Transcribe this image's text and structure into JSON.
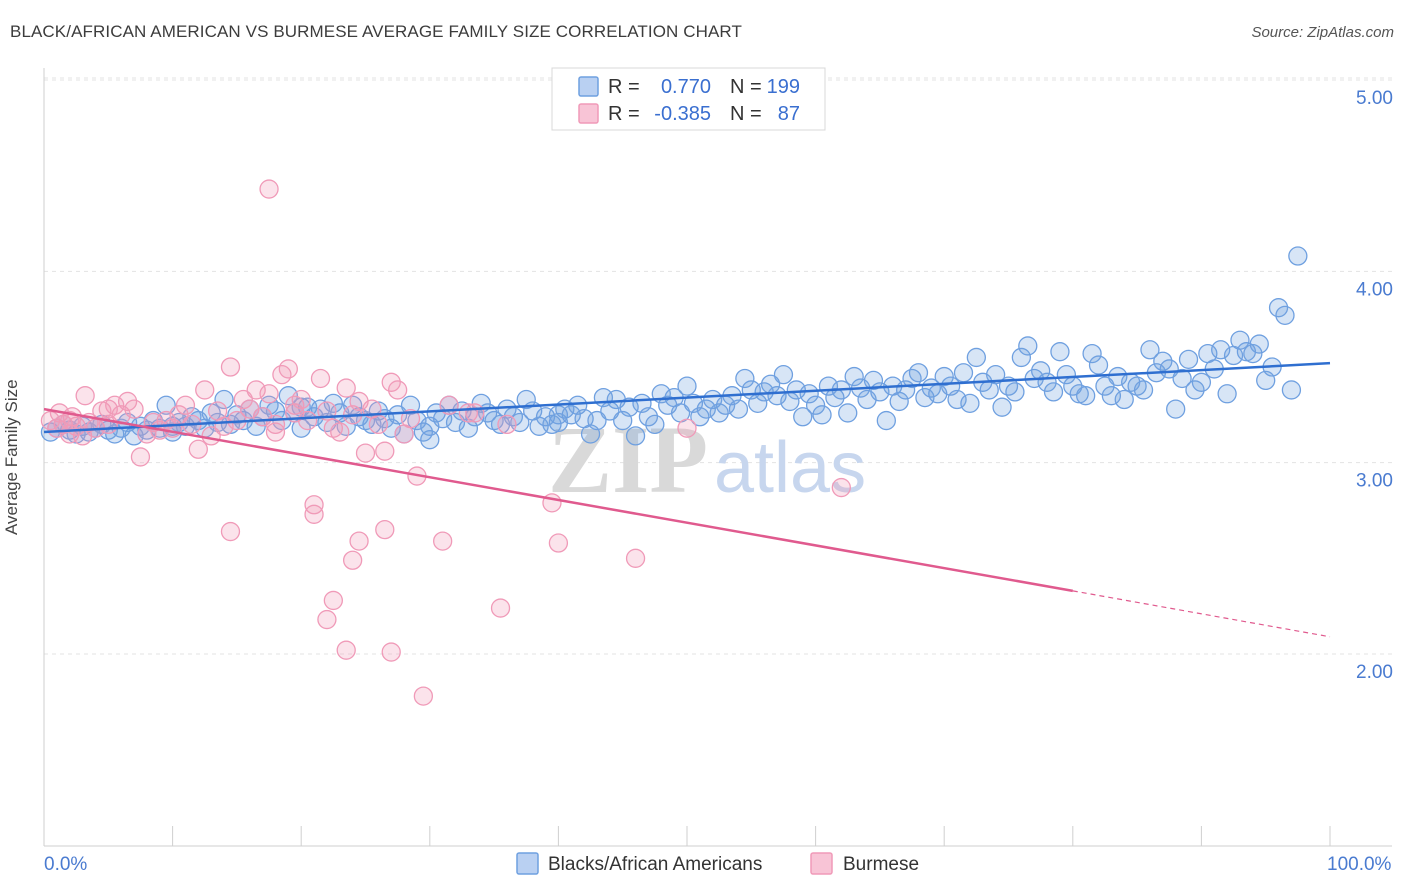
{
  "chart_data": {
    "type": "scatter",
    "title": "BLACK/AFRICAN AMERICAN VS BURMESE AVERAGE FAMILY SIZE CORRELATION CHART",
    "source": "Source: ZipAtlas.com",
    "xlabel": "",
    "ylabel": "Average Family Size",
    "xlim": [
      0,
      100
    ],
    "ylim": [
      1.0,
      5.2
    ],
    "x_tick_labels": [
      "0.0%",
      "100.0%"
    ],
    "y_ticks": [
      2.0,
      3.0,
      4.0,
      5.0
    ],
    "y_tick_labels": [
      "2.00",
      "3.00",
      "4.00",
      "5.00"
    ],
    "watermark": [
      "ZIP",
      "atlas"
    ],
    "legend_stats": [
      {
        "r_label": "R =",
        "r_value": "0.770",
        "n_label": "N =",
        "n_value": "199"
      },
      {
        "r_label": "R =",
        "r_value": "-0.385",
        "n_label": "N =",
        "n_value": "87"
      }
    ],
    "series": [
      {
        "name": "Blacks/African Americans",
        "color": "#6fa0e0",
        "line_color": "#2f6fd0",
        "trend": {
          "x0": 0,
          "y0": 3.16,
          "x1": 100,
          "y1": 3.52
        },
        "points": [
          [
            0.5,
            3.16
          ],
          [
            1.0,
            3.18
          ],
          [
            1.5,
            3.2
          ],
          [
            2.0,
            3.17
          ],
          [
            2.5,
            3.15
          ],
          [
            3.0,
            3.19
          ],
          [
            3.5,
            3.16
          ],
          [
            4.0,
            3.18
          ],
          [
            4.5,
            3.2
          ],
          [
            5.0,
            3.17
          ],
          [
            5.5,
            3.15
          ],
          [
            6.0,
            3.18
          ],
          [
            6.5,
            3.21
          ],
          [
            7.0,
            3.14
          ],
          [
            7.5,
            3.19
          ],
          [
            8.0,
            3.17
          ],
          [
            8.5,
            3.22
          ],
          [
            9.0,
            3.18
          ],
          [
            9.5,
            3.3
          ],
          [
            10.0,
            3.16
          ],
          [
            10.5,
            3.21
          ],
          [
            11.0,
            3.19
          ],
          [
            11.5,
            3.24
          ],
          [
            12.0,
            3.22
          ],
          [
            12.5,
            3.18
          ],
          [
            13.0,
            3.26
          ],
          [
            13.5,
            3.21
          ],
          [
            14.0,
            3.33
          ],
          [
            14.5,
            3.2
          ],
          [
            15.0,
            3.25
          ],
          [
            15.5,
            3.22
          ],
          [
            16.0,
            3.28
          ],
          [
            16.5,
            3.19
          ],
          [
            17.0,
            3.24
          ],
          [
            17.5,
            3.3
          ],
          [
            18.0,
            3.27
          ],
          [
            18.5,
            3.22
          ],
          [
            19.0,
            3.35
          ],
          [
            19.5,
            3.26
          ],
          [
            20.0,
            3.18
          ],
          [
            20.5,
            3.29
          ],
          [
            21.0,
            3.24
          ],
          [
            21.5,
            3.28
          ],
          [
            22.0,
            3.21
          ],
          [
            22.5,
            3.31
          ],
          [
            23.0,
            3.26
          ],
          [
            23.5,
            3.19
          ],
          [
            24.0,
            3.3
          ],
          [
            24.5,
            3.24
          ],
          [
            25.0,
            3.22
          ],
          [
            25.5,
            3.2
          ],
          [
            26.0,
            3.27
          ],
          [
            26.5,
            3.23
          ],
          [
            27.0,
            3.18
          ],
          [
            27.5,
            3.25
          ],
          [
            28.0,
            3.15
          ],
          [
            28.5,
            3.3
          ],
          [
            29.0,
            3.22
          ],
          [
            29.5,
            3.16
          ],
          [
            30.0,
            3.12
          ],
          [
            30.5,
            3.26
          ],
          [
            31.0,
            3.23
          ],
          [
            31.5,
            3.3
          ],
          [
            32.0,
            3.21
          ],
          [
            32.5,
            3.27
          ],
          [
            33.0,
            3.18
          ],
          [
            33.5,
            3.24
          ],
          [
            34.0,
            3.31
          ],
          [
            34.5,
            3.26
          ],
          [
            35.0,
            3.22
          ],
          [
            35.5,
            3.2
          ],
          [
            36.0,
            3.28
          ],
          [
            36.5,
            3.24
          ],
          [
            37.0,
            3.21
          ],
          [
            37.5,
            3.33
          ],
          [
            38.0,
            3.27
          ],
          [
            38.5,
            3.19
          ],
          [
            39.0,
            3.24
          ],
          [
            39.5,
            3.2
          ],
          [
            40.0,
            3.21
          ],
          [
            40.5,
            3.28
          ],
          [
            41.0,
            3.25
          ],
          [
            41.5,
            3.3
          ],
          [
            42.0,
            3.23
          ],
          [
            42.5,
            3.15
          ],
          [
            43.0,
            3.22
          ],
          [
            43.5,
            3.34
          ],
          [
            44.0,
            3.27
          ],
          [
            44.5,
            3.33
          ],
          [
            45.0,
            3.22
          ],
          [
            45.5,
            3.29
          ],
          [
            46.0,
            3.14
          ],
          [
            46.5,
            3.31
          ],
          [
            47.0,
            3.24
          ],
          [
            47.5,
            3.2
          ],
          [
            48.0,
            3.36
          ],
          [
            48.5,
            3.3
          ],
          [
            49.0,
            3.34
          ],
          [
            49.5,
            3.26
          ],
          [
            50.0,
            3.4
          ],
          [
            50.5,
            3.31
          ],
          [
            51.0,
            3.24
          ],
          [
            51.5,
            3.28
          ],
          [
            52.0,
            3.33
          ],
          [
            52.5,
            3.26
          ],
          [
            53.0,
            3.3
          ],
          [
            53.5,
            3.35
          ],
          [
            54.0,
            3.28
          ],
          [
            54.5,
            3.44
          ],
          [
            55.0,
            3.38
          ],
          [
            55.5,
            3.31
          ],
          [
            56.0,
            3.37
          ],
          [
            56.5,
            3.41
          ],
          [
            57.0,
            3.35
          ],
          [
            57.5,
            3.46
          ],
          [
            58.0,
            3.32
          ],
          [
            58.5,
            3.38
          ],
          [
            59.0,
            3.24
          ],
          [
            59.5,
            3.36
          ],
          [
            60.0,
            3.3
          ],
          [
            60.5,
            3.25
          ],
          [
            61.0,
            3.4
          ],
          [
            61.5,
            3.34
          ],
          [
            62.0,
            3.38
          ],
          [
            62.5,
            3.26
          ],
          [
            63.0,
            3.45
          ],
          [
            63.5,
            3.39
          ],
          [
            64.0,
            3.33
          ],
          [
            64.5,
            3.43
          ],
          [
            65.0,
            3.37
          ],
          [
            65.5,
            3.22
          ],
          [
            66.0,
            3.4
          ],
          [
            66.5,
            3.32
          ],
          [
            67.0,
            3.38
          ],
          [
            67.5,
            3.44
          ],
          [
            68.0,
            3.47
          ],
          [
            68.5,
            3.34
          ],
          [
            69.0,
            3.39
          ],
          [
            69.5,
            3.36
          ],
          [
            70.0,
            3.45
          ],
          [
            70.5,
            3.4
          ],
          [
            71.0,
            3.33
          ],
          [
            71.5,
            3.47
          ],
          [
            72.0,
            3.31
          ],
          [
            72.5,
            3.55
          ],
          [
            73.0,
            3.42
          ],
          [
            73.5,
            3.38
          ],
          [
            74.0,
            3.46
          ],
          [
            74.5,
            3.29
          ],
          [
            75.0,
            3.4
          ],
          [
            75.5,
            3.37
          ],
          [
            76.0,
            3.55
          ],
          [
            76.5,
            3.61
          ],
          [
            77.0,
            3.44
          ],
          [
            77.5,
            3.48
          ],
          [
            78.0,
            3.42
          ],
          [
            78.5,
            3.37
          ],
          [
            79.0,
            3.58
          ],
          [
            79.5,
            3.46
          ],
          [
            80.0,
            3.4
          ],
          [
            80.5,
            3.36
          ],
          [
            81.0,
            3.35
          ],
          [
            81.5,
            3.57
          ],
          [
            82.0,
            3.51
          ],
          [
            82.5,
            3.4
          ],
          [
            83.0,
            3.35
          ],
          [
            83.5,
            3.45
          ],
          [
            84.0,
            3.33
          ],
          [
            84.5,
            3.42
          ],
          [
            85.0,
            3.4
          ],
          [
            85.5,
            3.38
          ],
          [
            86.0,
            3.59
          ],
          [
            86.5,
            3.47
          ],
          [
            87.0,
            3.53
          ],
          [
            87.5,
            3.49
          ],
          [
            88.0,
            3.28
          ],
          [
            88.5,
            3.44
          ],
          [
            89.0,
            3.54
          ],
          [
            89.5,
            3.38
          ],
          [
            90.0,
            3.42
          ],
          [
            90.5,
            3.57
          ],
          [
            91.0,
            3.49
          ],
          [
            91.5,
            3.59
          ],
          [
            92.0,
            3.36
          ],
          [
            92.5,
            3.56
          ],
          [
            93.0,
            3.64
          ],
          [
            93.5,
            3.58
          ],
          [
            94.0,
            3.57
          ],
          [
            94.5,
            3.62
          ],
          [
            95.0,
            3.43
          ],
          [
            95.5,
            3.5
          ],
          [
            96.0,
            3.81
          ],
          [
            96.5,
            3.77
          ],
          [
            97.0,
            3.38
          ],
          [
            97.5,
            4.08
          ],
          [
            10.0,
            3.19
          ],
          [
            20.0,
            3.29
          ],
          [
            30.0,
            3.19
          ],
          [
            40.0,
            3.25
          ]
        ]
      },
      {
        "name": "Burmese",
        "color": "#f09ab8",
        "line_color": "#e05a8e",
        "trend": {
          "x0": 0,
          "y0": 3.28,
          "x1": 80,
          "y1": 2.33,
          "x_dash_end": 100,
          "y_dash_end": 2.09
        },
        "points": [
          [
            0.5,
            3.22
          ],
          [
            1.0,
            3.18
          ],
          [
            1.2,
            3.26
          ],
          [
            1.5,
            3.2
          ],
          [
            2.0,
            3.15
          ],
          [
            2.2,
            3.24
          ],
          [
            2.5,
            3.19
          ],
          [
            3.0,
            3.14
          ],
          [
            3.2,
            3.35
          ],
          [
            3.5,
            3.21
          ],
          [
            4.0,
            3.18
          ],
          [
            4.5,
            3.27
          ],
          [
            5.0,
            3.2
          ],
          [
            5.5,
            3.3
          ],
          [
            6.0,
            3.25
          ],
          [
            6.5,
            3.32
          ],
          [
            7.0,
            3.28
          ],
          [
            7.5,
            3.03
          ],
          [
            8.0,
            3.15
          ],
          [
            8.5,
            3.21
          ],
          [
            9.0,
            3.17
          ],
          [
            9.5,
            3.22
          ],
          [
            10.0,
            3.18
          ],
          [
            10.5,
            3.25
          ],
          [
            11.0,
            3.3
          ],
          [
            11.5,
            3.2
          ],
          [
            12.0,
            3.07
          ],
          [
            12.5,
            3.38
          ],
          [
            13.0,
            3.14
          ],
          [
            13.5,
            3.27
          ],
          [
            14.0,
            3.19
          ],
          [
            14.5,
            3.5
          ],
          [
            15.0,
            3.22
          ],
          [
            15.5,
            3.33
          ],
          [
            16.0,
            3.28
          ],
          [
            16.5,
            3.38
          ],
          [
            17.0,
            3.24
          ],
          [
            17.5,
            3.36
          ],
          [
            18.0,
            3.2
          ],
          [
            18.5,
            3.46
          ],
          [
            19.0,
            3.49
          ],
          [
            19.5,
            3.26
          ],
          [
            20.0,
            3.33
          ],
          [
            20.5,
            3.22
          ],
          [
            21.0,
            2.78
          ],
          [
            21.5,
            3.44
          ],
          [
            22.0,
            3.27
          ],
          [
            22.5,
            3.18
          ],
          [
            23.0,
            3.16
          ],
          [
            23.5,
            3.39
          ],
          [
            24.0,
            3.25
          ],
          [
            24.5,
            3.32
          ],
          [
            25.0,
            3.05
          ],
          [
            25.5,
            3.28
          ],
          [
            26.0,
            3.2
          ],
          [
            26.5,
            3.06
          ],
          [
            27.0,
            3.42
          ],
          [
            27.5,
            3.38
          ],
          [
            28.0,
            3.15
          ],
          [
            17.5,
            4.43
          ],
          [
            14.5,
            2.64
          ],
          [
            21.0,
            2.73
          ],
          [
            22.0,
            2.18
          ],
          [
            22.5,
            2.28
          ],
          [
            23.5,
            2.02
          ],
          [
            24.0,
            2.49
          ],
          [
            24.5,
            2.59
          ],
          [
            26.5,
            2.65
          ],
          [
            27.0,
            2.01
          ],
          [
            29.0,
            2.93
          ],
          [
            29.5,
            1.78
          ],
          [
            31.0,
            2.59
          ],
          [
            33.0,
            3.26
          ],
          [
            35.5,
            2.24
          ],
          [
            39.5,
            2.79
          ],
          [
            40.0,
            2.58
          ],
          [
            46.0,
            2.5
          ],
          [
            50.0,
            3.18
          ],
          [
            62.0,
            2.87
          ],
          [
            18.0,
            3.16
          ],
          [
            19.5,
            3.3
          ],
          [
            28.5,
            3.23
          ],
          [
            31.5,
            3.3
          ],
          [
            33.5,
            3.26
          ],
          [
            36.0,
            3.2
          ],
          [
            5.0,
            3.28
          ],
          [
            2.0,
            3.22
          ]
        ]
      }
    ]
  }
}
